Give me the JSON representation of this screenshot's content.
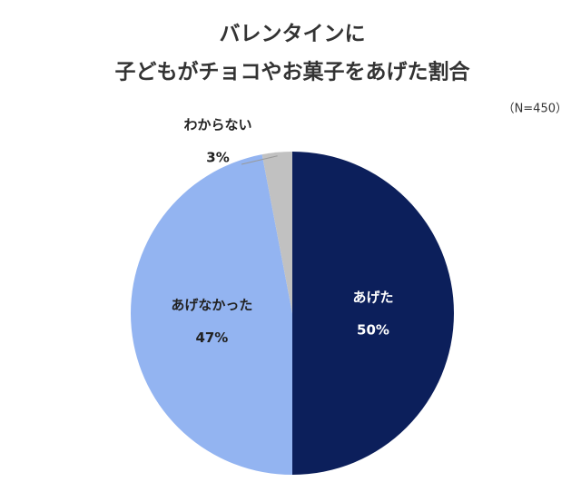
{
  "chart_data": {
    "type": "pie",
    "title": [
      "バレンタインに",
      "子どもがチョコやお菓子をあげた割合"
    ],
    "subtitle": "（N=450）",
    "categories": [
      "あげた",
      "あげなかった",
      "わからない"
    ],
    "values": [
      50,
      47,
      3
    ],
    "value_labels": [
      "50%",
      "47%",
      "3%"
    ],
    "colors": [
      "#0c1f5b",
      "#93b4f1",
      "#c1c1c1"
    ]
  }
}
